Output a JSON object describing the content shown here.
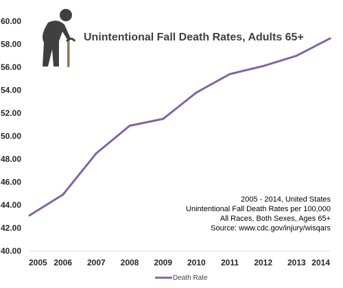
{
  "chart_data": {
    "type": "line",
    "title": "Unintentional Fall Death Rates, Adults 65+",
    "xlabel": "",
    "ylabel": "",
    "x": [
      "2005",
      "2006",
      "2007",
      "2008",
      "2009",
      "2010",
      "2011",
      "2012",
      "2013",
      "2014"
    ],
    "series": [
      {
        "name": "Death Rate",
        "values": [
          43.1,
          44.9,
          48.5,
          50.9,
          51.5,
          53.8,
          55.4,
          56.1,
          57.0,
          58.5
        ]
      }
    ],
    "yticks": [
      "40.00",
      "42.00",
      "44.00",
      "46.00",
      "48.00",
      "50.00",
      "52.00",
      "54.00",
      "56.00",
      "58.00",
      "60.00"
    ],
    "ylim": [
      40,
      60
    ],
    "grid": false,
    "legend": "bottom",
    "series_color": "#8064a2",
    "icon": "elderly-person-with-cane-icon",
    "annotations": [
      "2005 - 2014, United States",
      "Unintentional Fall Death Rates per 100,000",
      "All Races, Both Sexes, Ages 65+",
      "Source: www.cdc.gov/injury/wisqars"
    ]
  }
}
